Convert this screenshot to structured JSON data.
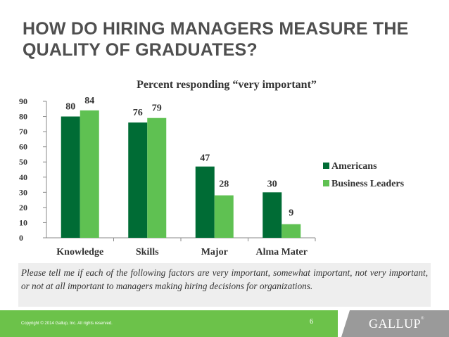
{
  "title_lines": [
    "HOW DO HIRING MANAGERS MEASURE THE",
    "QUALITY OF GRADUATES?"
  ],
  "question": "Please tell me if each of the following factors are very important, somewhat important, not very important, or not at all important to managers making hiring decisions for organizations.",
  "footer": {
    "copyright": "Copyright © 2014 Gallup, Inc. All rights reserved.",
    "page_number": "6",
    "logo": "GALLUP",
    "logo_mark": "®"
  },
  "colors": {
    "americans": "#006c35",
    "business_leaders": "#5fc152",
    "axis": "#888888",
    "text": "#333333",
    "question_bg": "#eeeeee",
    "footer_green": "#6cc24a",
    "footer_grey": "#9a9a9a"
  },
  "chart_data": {
    "type": "bar",
    "subtitle": "Percent responding “very important”",
    "categories": [
      "Knowledge",
      "Skills",
      "Major",
      "Alma Mater"
    ],
    "series": [
      {
        "name": "Americans",
        "values": [
          80,
          76,
          47,
          30
        ]
      },
      {
        "name": "Business Leaders",
        "values": [
          84,
          79,
          28,
          9
        ]
      }
    ],
    "ylim": [
      0,
      90
    ],
    "yticks": [
      0,
      10,
      20,
      30,
      40,
      50,
      60,
      70,
      80,
      90
    ],
    "xlabel": "",
    "ylabel": "",
    "grid": false,
    "legend_position": "right",
    "data_labels": true
  }
}
